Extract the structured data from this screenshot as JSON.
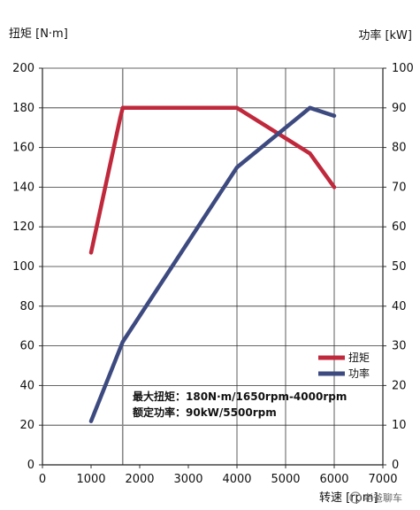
{
  "chart_data": {
    "type": "line",
    "y_left_label": "扭矩 [N·m]",
    "y_right_label": "功率 [kW]",
    "x_label": "转速 [rpm]",
    "xlim": [
      0,
      7000
    ],
    "ylim_left": [
      0,
      200
    ],
    "ylim_right": [
      0,
      100
    ],
    "x_ticks": [
      "0",
      "1000",
      "2000",
      "3000",
      "4000",
      "5000",
      "6000",
      "7000"
    ],
    "y_left_ticks": [
      "0",
      "20",
      "40",
      "60",
      "80",
      "100",
      "120",
      "140",
      "160",
      "180",
      "200"
    ],
    "y_right_ticks": [
      "0",
      "10",
      "20",
      "30",
      "40",
      "50",
      "60",
      "70",
      "80",
      "90",
      "100"
    ],
    "grid": true,
    "legend_placement": "bottom-right",
    "series": [
      {
        "name": "扭矩",
        "axis": "left",
        "color": "#c0283c",
        "points": [
          [
            1000,
            107
          ],
          [
            1600,
            175
          ],
          [
            1650,
            180
          ],
          [
            4000,
            180
          ],
          [
            5500,
            157
          ],
          [
            6000,
            140
          ]
        ]
      },
      {
        "name": "功率",
        "axis": "right",
        "color": "#3d4a80",
        "points": [
          [
            1000,
            11
          ],
          [
            1650,
            31
          ],
          [
            4000,
            75
          ],
          [
            5500,
            90
          ],
          [
            6000,
            88
          ]
        ]
      }
    ],
    "annotations": [
      "最大扭矩：180N·m/1650rpm-4000rpm",
      "额定功率：90kW/5500rpm"
    ],
    "watermark": "老爸聊车"
  }
}
